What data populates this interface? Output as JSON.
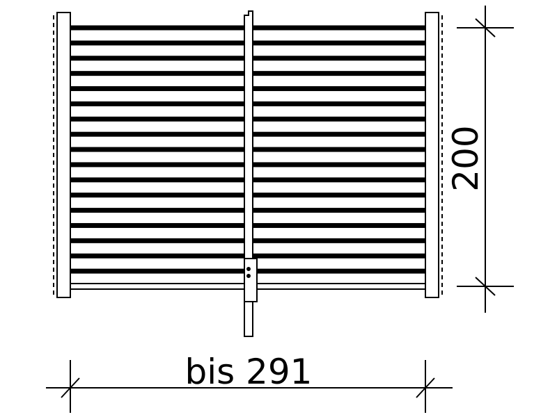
{
  "dimensions": {
    "width_label": "bis 291",
    "height_label": "200"
  },
  "gate": {
    "board_count": 18
  },
  "colors": {
    "line": "#000000",
    "background": "#ffffff"
  }
}
